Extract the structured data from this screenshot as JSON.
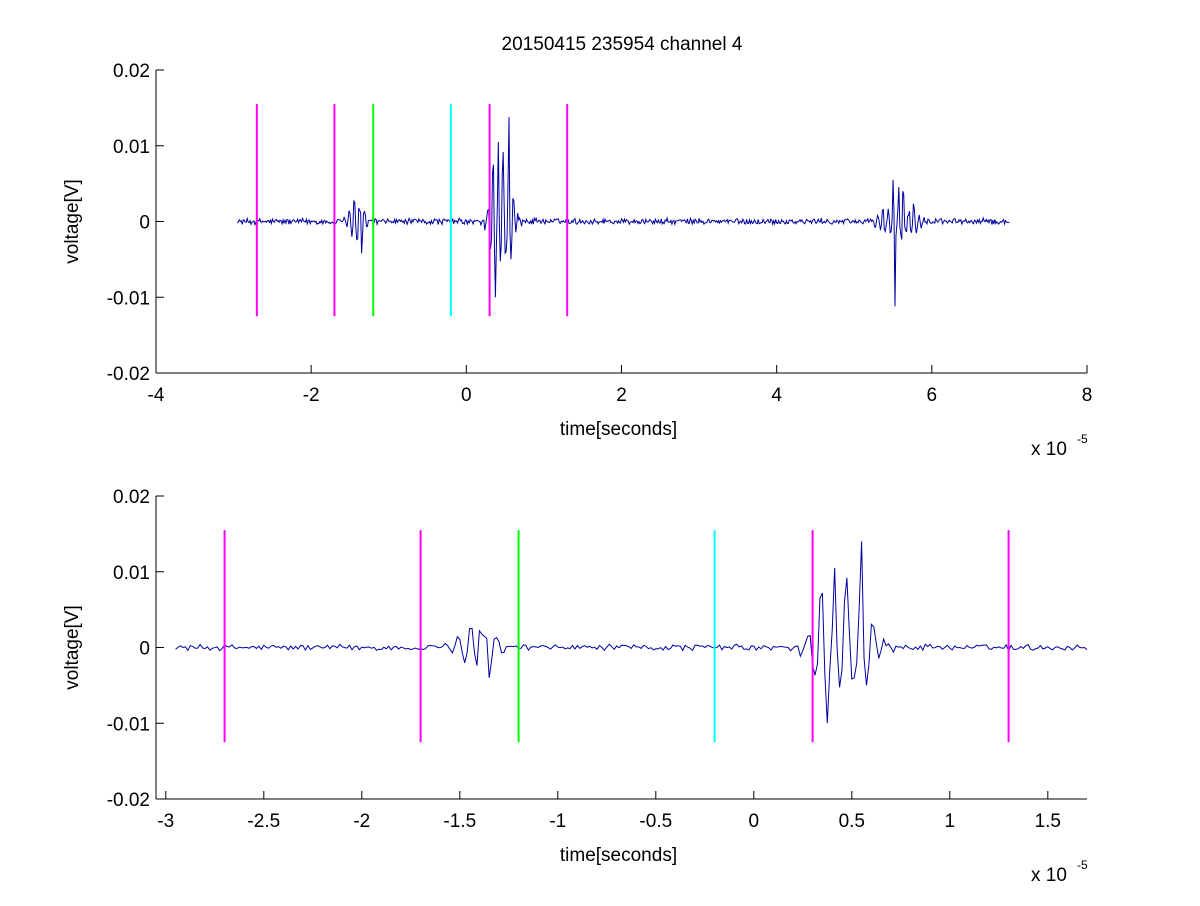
{
  "figure": {
    "title": "20150415 235954 channel 4"
  },
  "chart_data": [
    {
      "type": "line",
      "title": "20150415 235954 channel 4",
      "xlabel": "time[seconds]",
      "ylabel": "voltage[V]",
      "x_multiplier_label": "x 10",
      "x_multiplier_exponent": "-5",
      "xlim": [
        -4,
        8
      ],
      "ylim": [
        -0.02,
        0.02
      ],
      "x_ticks": [
        -4,
        -2,
        0,
        2,
        4,
        6,
        8
      ],
      "x_tick_labels": [
        "-4",
        "-2",
        "0",
        "2",
        "4",
        "6",
        "8"
      ],
      "y_ticks": [
        -0.02,
        -0.01,
        0,
        0.01,
        0.02
      ],
      "y_tick_labels": [
        "-0.02",
        "-0.01",
        "0",
        "0.01",
        "0.02"
      ],
      "grid": false,
      "series": [
        {
          "color": "#0000a0",
          "x_range": [
            -2.95,
            7.0
          ],
          "baseline_noise": 0.0004,
          "bursts": [
            {
              "center": -1.42,
              "width": 0.12,
              "amplitude": 0.0025,
              "peaks": [
                [
                  -1.45,
                  0.0027
                ],
                [
                  -1.35,
                  -0.0042
                ]
              ]
            },
            {
              "center": 0.45,
              "width": 0.15,
              "amplitude": 0.008,
              "peaks": [
                [
                  0.35,
                  0.0075
                ],
                [
                  0.38,
                  -0.01
                ],
                [
                  0.46,
                  0.006
                ],
                [
                  0.55,
                  0.0138
                ],
                [
                  0.57,
                  -0.005
                ]
              ]
            },
            {
              "center": 5.58,
              "width": 0.22,
              "amplitude": 0.0035,
              "peaks": [
                [
                  5.5,
                  0.0055
                ],
                [
                  5.52,
                  -0.0112
                ],
                [
                  5.62,
                  0.004
                ]
              ]
            }
          ]
        }
      ],
      "markers": [
        {
          "x": -2.7,
          "color": "#ff00ff",
          "ymin": -0.0125,
          "ymax": 0.0155
        },
        {
          "x": -1.7,
          "color": "#ff00ff",
          "ymin": -0.0125,
          "ymax": 0.0155
        },
        {
          "x": -1.2,
          "color": "#00ff00",
          "ymin": -0.0125,
          "ymax": 0.0155
        },
        {
          "x": -0.2,
          "color": "#00ffff",
          "ymin": -0.0125,
          "ymax": 0.0155
        },
        {
          "x": 0.3,
          "color": "#ff00ff",
          "ymin": -0.0125,
          "ymax": 0.0155
        },
        {
          "x": 1.3,
          "color": "#ff00ff",
          "ymin": -0.0125,
          "ymax": 0.0155
        }
      ]
    },
    {
      "type": "line",
      "title": "",
      "xlabel": "time[seconds]",
      "ylabel": "voltage[V]",
      "x_multiplier_label": "x 10",
      "x_multiplier_exponent": "-5",
      "xlim": [
        -3.05,
        1.7
      ],
      "ylim": [
        -0.02,
        0.02
      ],
      "x_ticks": [
        -3,
        -2.5,
        -2,
        -1.5,
        -1,
        -0.5,
        0,
        0.5,
        1,
        1.5
      ],
      "x_tick_labels": [
        "-3",
        "-2.5",
        "-2",
        "-1.5",
        "-1",
        "-0.5",
        "0",
        "0.5",
        "1",
        "1.5"
      ],
      "y_ticks": [
        -0.02,
        -0.01,
        0,
        0.01,
        0.02
      ],
      "y_tick_labels": [
        "-0.02",
        "-0.01",
        "0",
        "0.01",
        "0.02"
      ],
      "grid": false,
      "series": [
        {
          "color": "#0000a0",
          "x_range": [
            -2.95,
            1.7
          ],
          "baseline_noise": 0.0004,
          "bursts": [
            {
              "center": -1.42,
              "width": 0.12,
              "amplitude": 0.0025,
              "peaks": [
                [
                  -1.45,
                  0.0025
                ],
                [
                  -1.4,
                  0.0022
                ],
                [
                  -1.35,
                  -0.004
                ]
              ]
            },
            {
              "center": 0.45,
              "width": 0.15,
              "amplitude": 0.008,
              "peaks": [
                [
                  0.35,
                  0.0072
                ],
                [
                  0.37,
                  -0.01
                ],
                [
                  0.46,
                  0.006
                ],
                [
                  0.55,
                  0.014
                ],
                [
                  0.57,
                  -0.005
                ]
              ]
            }
          ]
        }
      ],
      "markers": [
        {
          "x": -2.7,
          "color": "#ff00ff",
          "ymin": -0.0125,
          "ymax": 0.0155
        },
        {
          "x": -1.7,
          "color": "#ff00ff",
          "ymin": -0.0125,
          "ymax": 0.0155
        },
        {
          "x": -1.2,
          "color": "#00ff00",
          "ymin": -0.0125,
          "ymax": 0.0155
        },
        {
          "x": -0.2,
          "color": "#00ffff",
          "ymin": -0.0125,
          "ymax": 0.0155
        },
        {
          "x": 0.3,
          "color": "#ff00ff",
          "ymin": -0.0125,
          "ymax": 0.0155
        },
        {
          "x": 1.3,
          "color": "#ff00ff",
          "ymin": -0.0125,
          "ymax": 0.0155
        }
      ]
    }
  ]
}
